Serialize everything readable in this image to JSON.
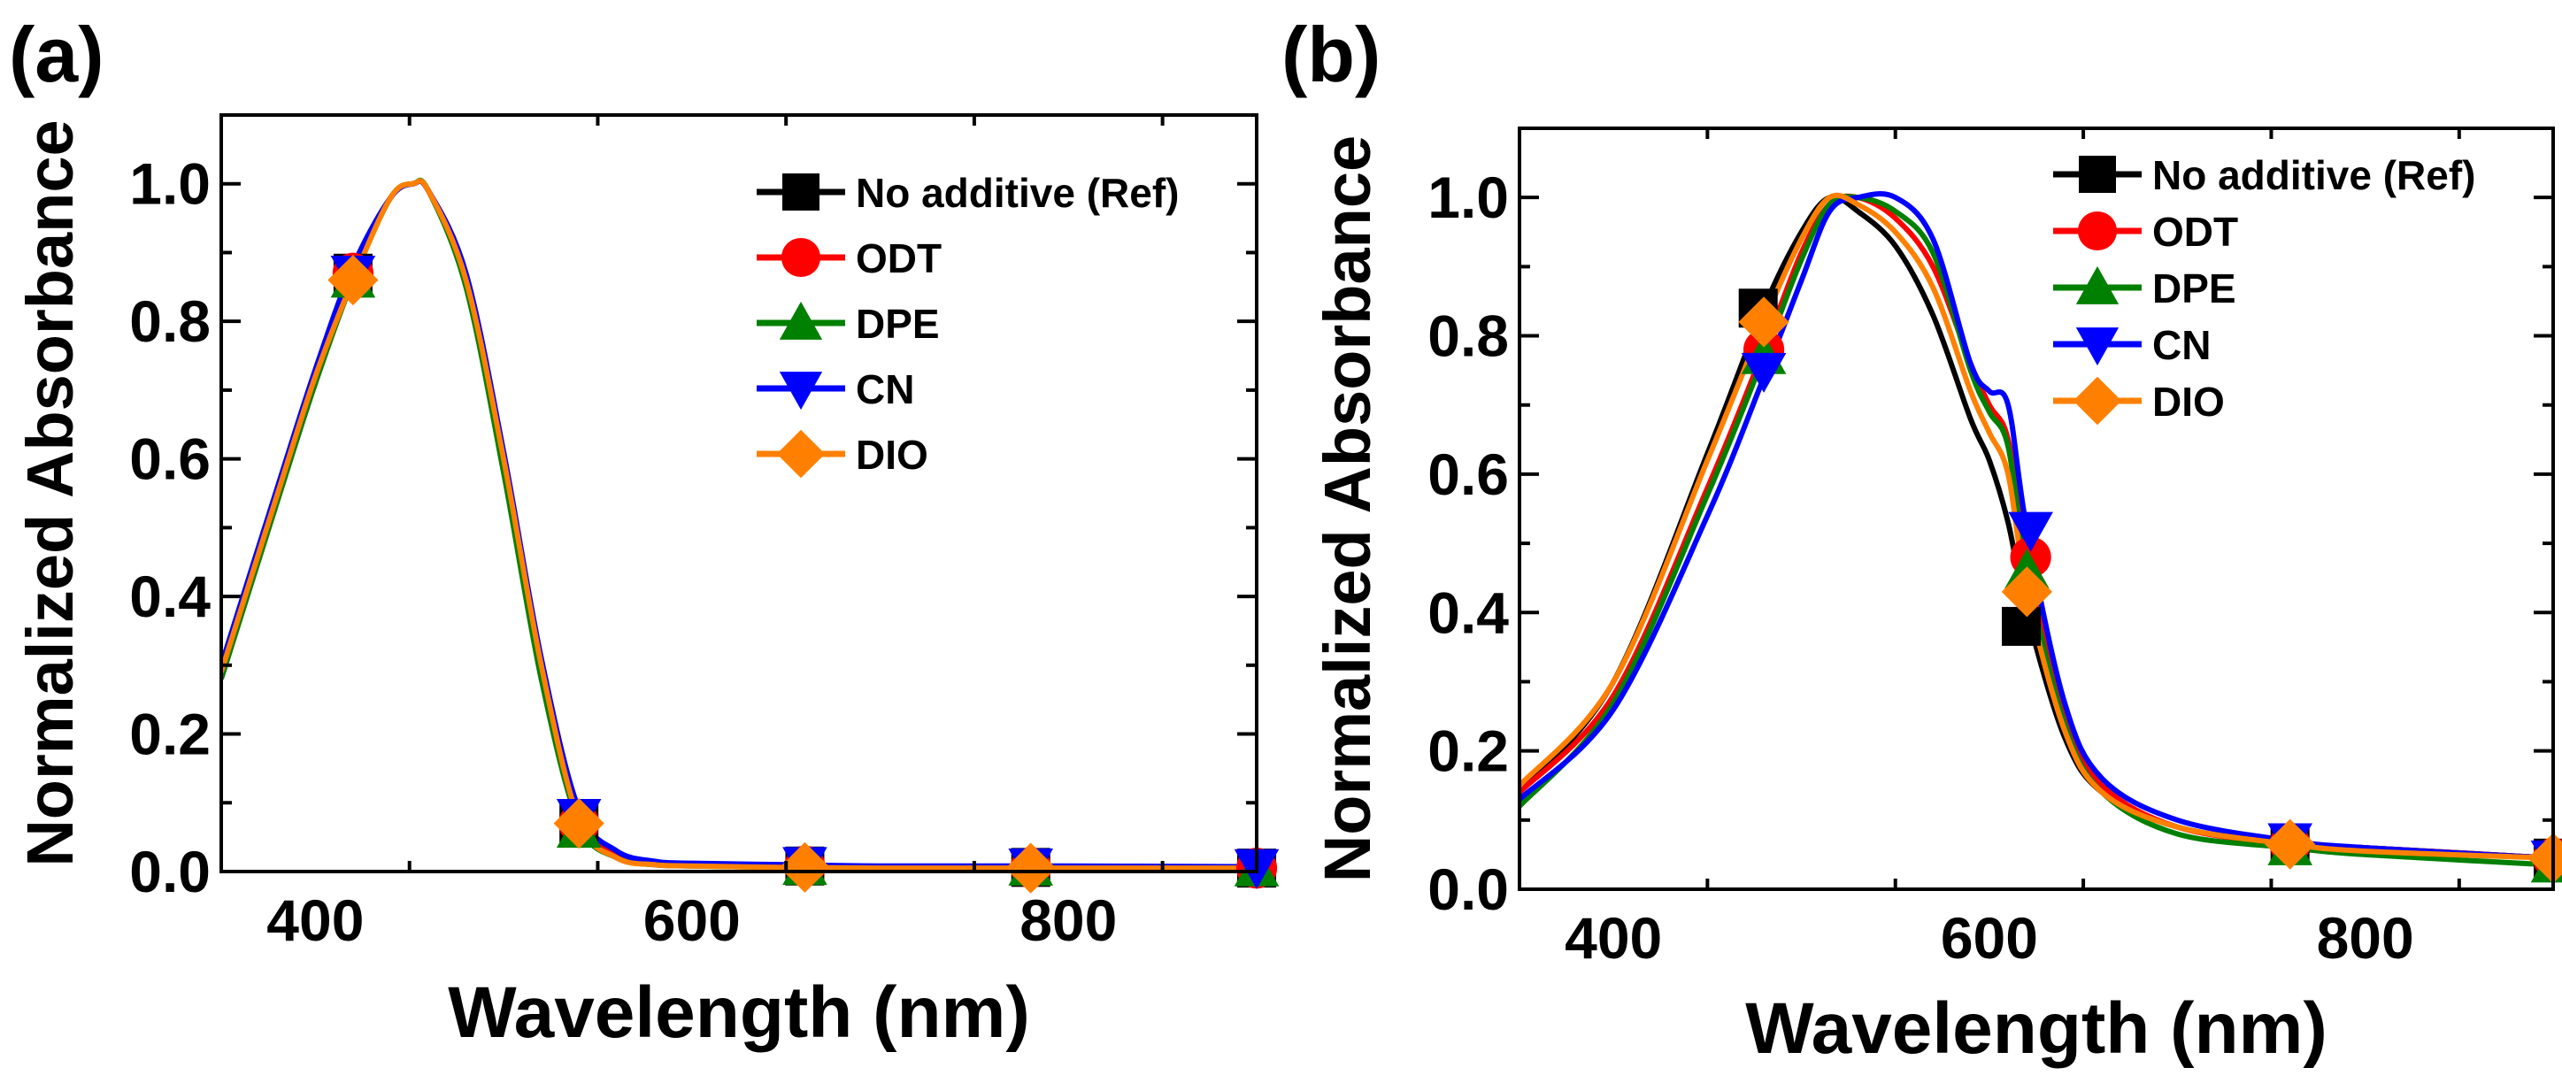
{
  "chart_data": [
    {
      "panel_label": "(a)",
      "type": "line",
      "xlabel": "Wavelength (nm)",
      "ylabel": "Normalized Absorbance",
      "xlim": [
        350,
        900
      ],
      "ylim": [
        0,
        1.1
      ],
      "xticks": [
        400,
        600,
        800
      ],
      "xtick_labels": [
        "400",
        "600",
        "800"
      ],
      "yticks": [
        0,
        0.2,
        0.4,
        0.6,
        0.8,
        1.0
      ],
      "ytick_labels": [
        "0.0",
        "0.2",
        "0.4",
        "0.6",
        "0.8",
        "1.0"
      ],
      "legend_position": "top-right",
      "series": [
        {
          "name": "No additive (Ref)",
          "color": "#000000",
          "marker": "square",
          "x": [
            350,
            380,
            400,
            420,
            440,
            452,
            460,
            480,
            500,
            520,
            540,
            560,
            580,
            600,
            650,
            700,
            800,
            900
          ],
          "y": [
            0.29,
            0.55,
            0.72,
            0.87,
            0.98,
            1.0,
            0.99,
            0.86,
            0.6,
            0.3,
            0.08,
            0.025,
            0.012,
            0.01,
            0.008,
            0.006,
            0.006,
            0.005
          ],
          "marker_x": [
            420,
            540,
            660,
            780,
            900
          ],
          "marker_y": [
            0.87,
            0.07,
            0.008,
            0.006,
            0.005
          ]
        },
        {
          "name": "ODT",
          "color": "#ff0000",
          "marker": "circle",
          "x": [
            350,
            380,
            400,
            420,
            440,
            452,
            460,
            480,
            500,
            520,
            540,
            560,
            580,
            600,
            650,
            700,
            800,
            900
          ],
          "y": [
            0.29,
            0.55,
            0.72,
            0.87,
            0.98,
            1.0,
            0.99,
            0.86,
            0.6,
            0.3,
            0.08,
            0.025,
            0.012,
            0.01,
            0.008,
            0.006,
            0.006,
            0.005
          ],
          "marker_x": [
            420,
            540,
            660,
            780,
            900
          ],
          "marker_y": [
            0.87,
            0.07,
            0.008,
            0.006,
            0.005
          ]
        },
        {
          "name": "DPE",
          "color": "#008000",
          "marker": "triangle-up",
          "x": [
            350,
            380,
            400,
            420,
            440,
            452,
            460,
            480,
            500,
            520,
            540,
            560,
            580,
            600,
            650,
            700,
            800,
            900
          ],
          "y": [
            0.28,
            0.54,
            0.71,
            0.86,
            0.98,
            1.0,
            0.99,
            0.85,
            0.58,
            0.28,
            0.07,
            0.02,
            0.01,
            0.008,
            0.006,
            0.005,
            0.005,
            0.004
          ],
          "marker_x": [
            420,
            540,
            660,
            780,
            900
          ],
          "marker_y": [
            0.86,
            0.06,
            0.006,
            0.005,
            0.004
          ]
        },
        {
          "name": "CN",
          "color": "#0000ff",
          "marker": "triangle-down",
          "x": [
            350,
            380,
            400,
            420,
            440,
            452,
            460,
            480,
            500,
            520,
            540,
            560,
            580,
            600,
            650,
            700,
            800,
            900
          ],
          "y": [
            0.3,
            0.56,
            0.73,
            0.88,
            0.98,
            1.0,
            0.99,
            0.87,
            0.61,
            0.31,
            0.09,
            0.03,
            0.015,
            0.012,
            0.01,
            0.008,
            0.008,
            0.007
          ],
          "marker_x": [
            420,
            540,
            660,
            780,
            900
          ],
          "marker_y": [
            0.87,
            0.08,
            0.01,
            0.008,
            0.007
          ]
        },
        {
          "name": "DIO",
          "color": "#ff8000",
          "marker": "diamond",
          "x": [
            350,
            380,
            400,
            420,
            440,
            452,
            460,
            480,
            500,
            520,
            540,
            560,
            580,
            600,
            650,
            700,
            800,
            900
          ],
          "y": [
            0.29,
            0.55,
            0.72,
            0.86,
            0.98,
            1.0,
            0.99,
            0.86,
            0.6,
            0.3,
            0.075,
            0.02,
            0.01,
            0.008,
            0.006,
            0.005,
            0.005,
            0.005
          ],
          "marker_x": [
            420,
            540,
            660,
            780
          ],
          "marker_y": [
            0.86,
            0.07,
            0.006,
            0.005
          ]
        }
      ]
    },
    {
      "panel_label": "(b)",
      "type": "line",
      "xlabel": "Wavelength (nm)",
      "ylabel": "Normalized Absorbance",
      "xlim": [
        350,
        900
      ],
      "ylim": [
        0,
        1.1
      ],
      "xticks": [
        400,
        600,
        800
      ],
      "xtick_labels": [
        "400",
        "600",
        "800"
      ],
      "yticks": [
        0,
        0.2,
        0.4,
        0.6,
        0.8,
        1.0
      ],
      "ytick_labels": [
        "0.0",
        "0.2",
        "0.4",
        "0.6",
        "0.8",
        "1.0"
      ],
      "legend_position": "top-right",
      "series": [
        {
          "name": "No additive (Ref)",
          "color": "#000000",
          "marker": "square",
          "x": [
            350,
            400,
            450,
            480,
            500,
            515,
            530,
            550,
            570,
            590,
            600,
            610,
            620,
            640,
            660,
            700,
            760,
            800,
            900
          ],
          "y": [
            0.14,
            0.3,
            0.63,
            0.84,
            0.95,
            1.0,
            0.98,
            0.93,
            0.83,
            0.68,
            0.62,
            0.53,
            0.4,
            0.22,
            0.14,
            0.09,
            0.065,
            0.06,
            0.045
          ],
          "marker_x": [
            477,
            617,
            760,
            900
          ],
          "marker_y": [
            0.84,
            0.38,
            0.065,
            0.045
          ]
        },
        {
          "name": "ODT",
          "color": "#ff0000",
          "marker": "circle",
          "x": [
            350,
            400,
            450,
            480,
            500,
            515,
            530,
            550,
            570,
            590,
            600,
            610,
            620,
            640,
            660,
            700,
            760,
            800,
            900
          ],
          "y": [
            0.14,
            0.28,
            0.58,
            0.78,
            0.92,
            0.99,
            1.0,
            0.97,
            0.9,
            0.76,
            0.7,
            0.65,
            0.48,
            0.25,
            0.15,
            0.09,
            0.065,
            0.06,
            0.045
          ],
          "marker_x": [
            480,
            622,
            760,
            900
          ],
          "marker_y": [
            0.78,
            0.48,
            0.065,
            0.045
          ]
        },
        {
          "name": "DPE",
          "color": "#008000",
          "marker": "triangle-up",
          "x": [
            350,
            400,
            450,
            480,
            500,
            515,
            530,
            550,
            570,
            590,
            600,
            610,
            620,
            640,
            660,
            700,
            760,
            800,
            900
          ],
          "y": [
            0.12,
            0.27,
            0.57,
            0.77,
            0.91,
            0.99,
            1.0,
            0.98,
            0.92,
            0.75,
            0.69,
            0.64,
            0.46,
            0.24,
            0.14,
            0.08,
            0.06,
            0.05,
            0.035
          ],
          "marker_x": [
            480,
            620,
            760,
            900
          ],
          "marker_y": [
            0.77,
            0.46,
            0.06,
            0.035
          ]
        },
        {
          "name": "CN",
          "color": "#0000ff",
          "marker": "triangle-down",
          "x": [
            350,
            400,
            450,
            480,
            500,
            515,
            530,
            550,
            570,
            590,
            600,
            610,
            620,
            640,
            660,
            700,
            760,
            800,
            900
          ],
          "y": [
            0.13,
            0.26,
            0.54,
            0.74,
            0.88,
            0.98,
            1.0,
            1.0,
            0.94,
            0.76,
            0.72,
            0.7,
            0.52,
            0.27,
            0.16,
            0.1,
            0.07,
            0.06,
            0.045
          ],
          "marker_x": [
            480,
            622,
            760,
            900
          ],
          "marker_y": [
            0.75,
            0.52,
            0.07,
            0.045
          ]
        },
        {
          "name": "DIO",
          "color": "#ff8000",
          "marker": "diamond",
          "x": [
            350,
            400,
            450,
            480,
            500,
            515,
            530,
            550,
            570,
            590,
            600,
            610,
            620,
            640,
            660,
            700,
            760,
            800,
            900
          ],
          "y": [
            0.15,
            0.3,
            0.62,
            0.82,
            0.94,
            1.0,
            0.99,
            0.95,
            0.87,
            0.72,
            0.66,
            0.6,
            0.43,
            0.23,
            0.14,
            0.09,
            0.065,
            0.055,
            0.045
          ],
          "marker_x": [
            480,
            620,
            760,
            900
          ],
          "marker_y": [
            0.82,
            0.43,
            0.065,
            0.045
          ]
        }
      ]
    }
  ]
}
